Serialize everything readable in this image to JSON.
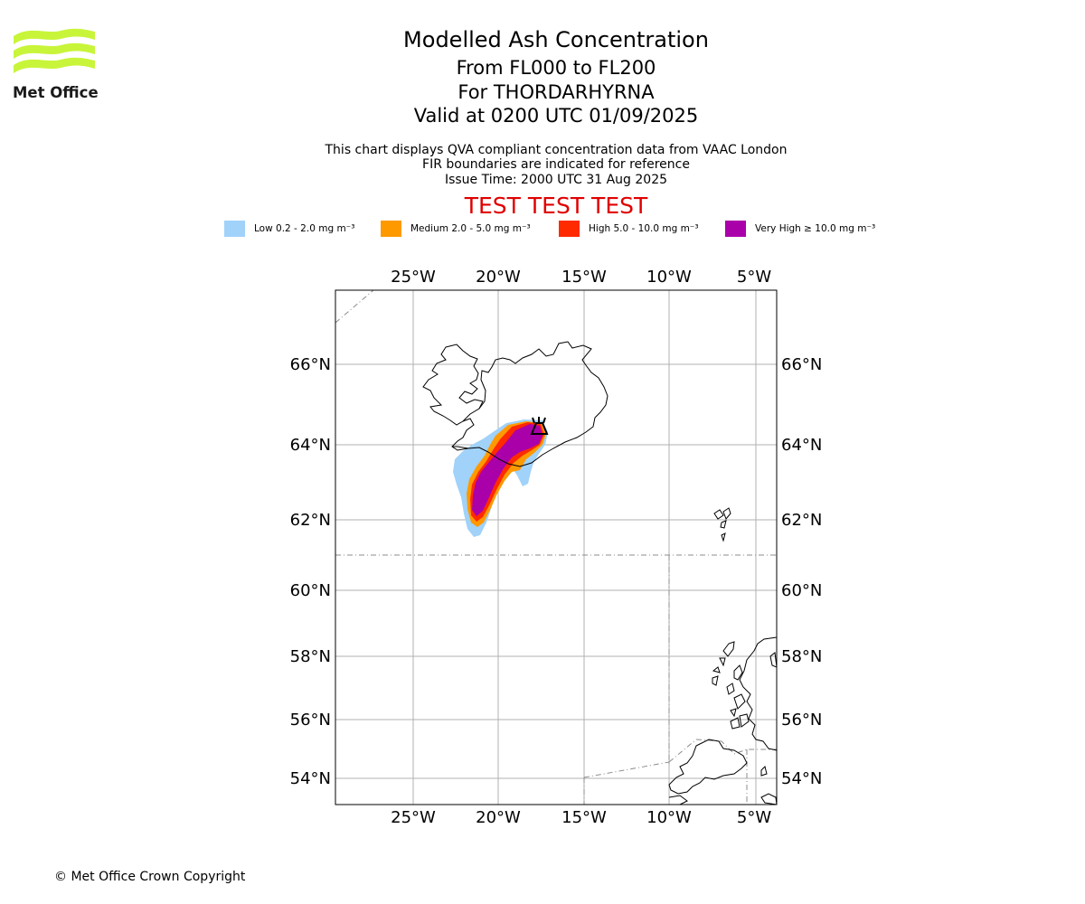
{
  "brand": {
    "name": "Met Office",
    "logo_color": "#c8f53a"
  },
  "header": {
    "title": "Modelled Ash Concentration",
    "line1": "From FL000 to FL200",
    "line2": "For THORDARHYRNA",
    "line3": "Valid at 0200 UTC 01/09/2025",
    "note1": "This chart displays QVA compliant concentration data from VAAC London",
    "note2": "FIR boundaries are indicated for reference",
    "note3": "Issue Time: 2000 UTC 31 Aug 2025",
    "test_banner": "TEST TEST TEST"
  },
  "legend": [
    {
      "label": "Low 0.2 - 2.0 mg m⁻³",
      "color": "#a0d2fa"
    },
    {
      "label": "Medium 2.0 - 5.0 mg m⁻³",
      "color": "#ff9900"
    },
    {
      "label": "High 5.0 - 10.0 mg m⁻³",
      "color": "#ff2a00"
    },
    {
      "label": "Very High ≥ 10.0 mg m⁻³",
      "color": "#aa00aa"
    }
  ],
  "map": {
    "lon_ticks": [
      "25°W",
      "20°W",
      "15°W",
      "10°W",
      "5°W"
    ],
    "lat_ticks": [
      "66°N",
      "64°N",
      "62°N",
      "60°N",
      "58°N",
      "56°N",
      "54°N"
    ],
    "volcano_icon": "volcano-icon"
  },
  "footer": {
    "copyright": "© Met Office Crown Copyright"
  }
}
